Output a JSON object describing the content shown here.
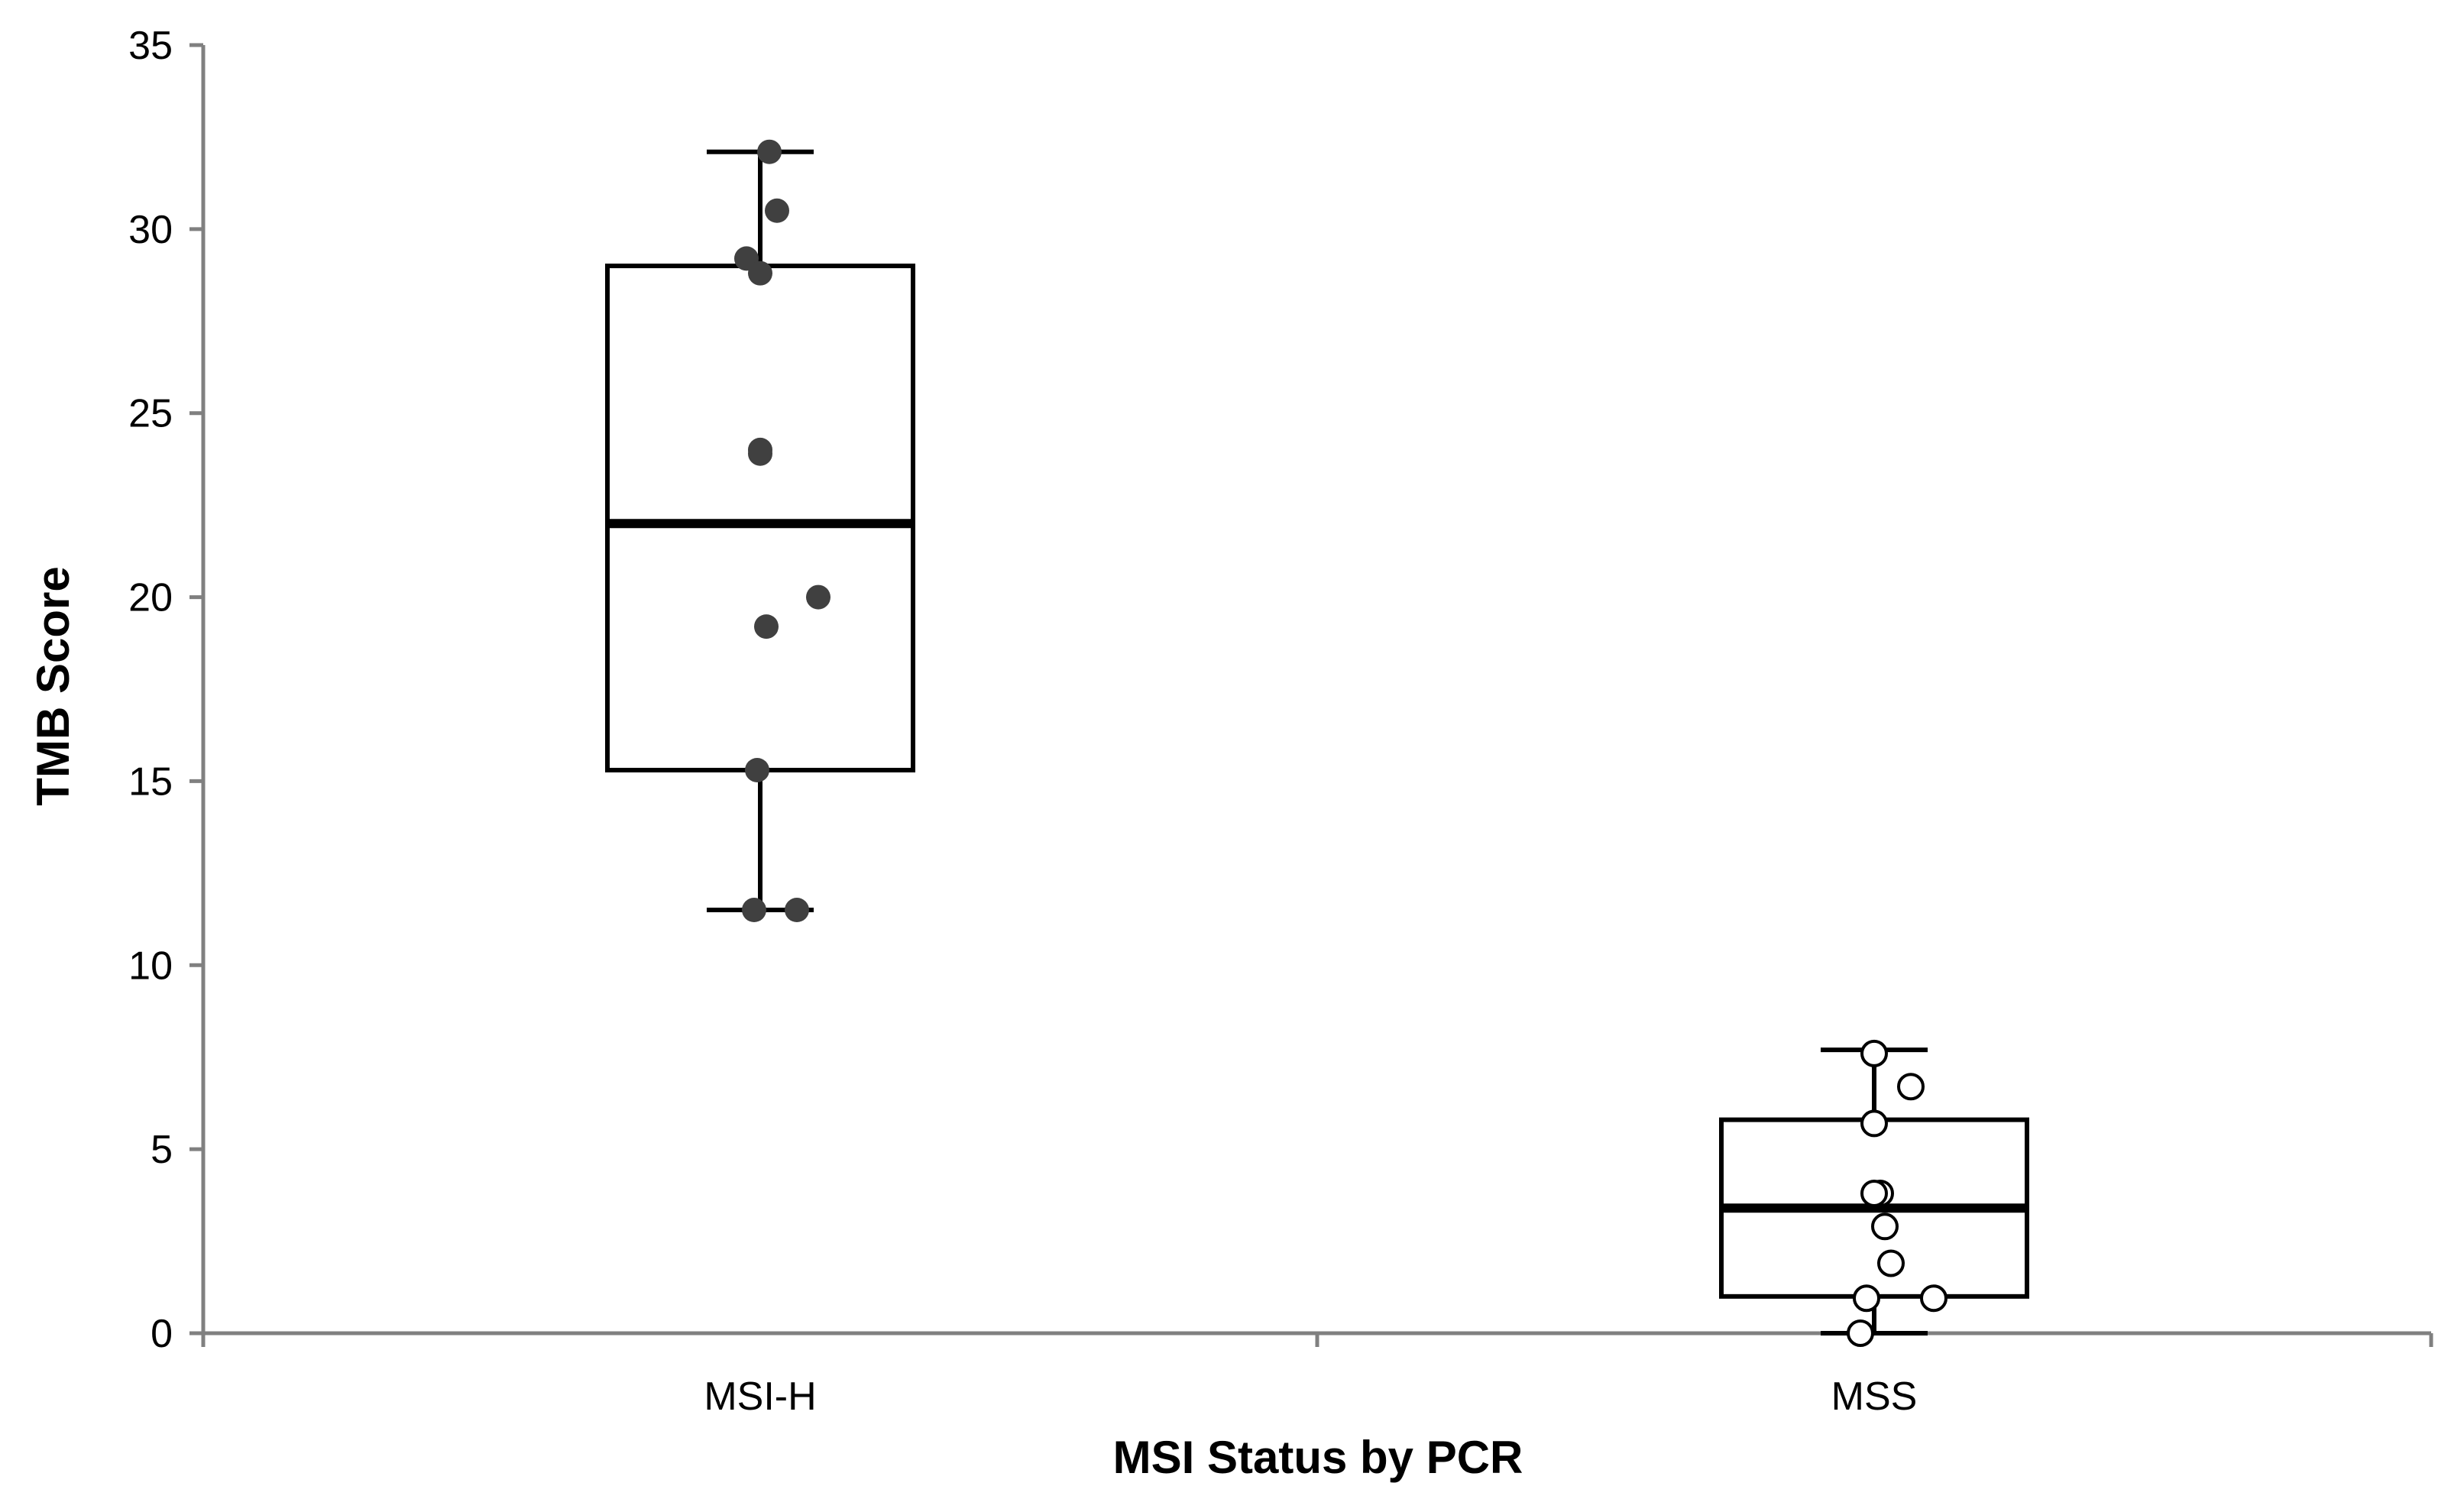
{
  "chart_data": {
    "type": "box",
    "xlabel": "MSI Status by PCR",
    "ylabel": "TMB Score",
    "ylim": [
      0,
      35
    ],
    "yticks": [
      0,
      5,
      10,
      15,
      20,
      25,
      30,
      35
    ],
    "grid": false,
    "legend": "none",
    "categories": [
      "MSI-H",
      "MSS"
    ],
    "boxes": [
      {
        "category": "MSI-H",
        "whisker_low": 11.5,
        "q1": 15.3,
        "median": 22.0,
        "q3": 29.0,
        "whisker_high": 32.1,
        "point_style": "filled",
        "points": [
          {
            "jitter": 0.06,
            "y": 32.1
          },
          {
            "jitter": 0.11,
            "y": 30.5
          },
          {
            "jitter": -0.09,
            "y": 29.2
          },
          {
            "jitter": 0.0,
            "y": 28.8
          },
          {
            "jitter": 0.0,
            "y": 24.0
          },
          {
            "jitter": 0.0,
            "y": 23.9
          },
          {
            "jitter": 0.38,
            "y": 20.0
          },
          {
            "jitter": 0.04,
            "y": 19.2
          },
          {
            "jitter": -0.02,
            "y": 15.3
          },
          {
            "jitter": -0.04,
            "y": 11.5
          },
          {
            "jitter": 0.24,
            "y": 11.5
          }
        ]
      },
      {
        "category": "MSS",
        "whisker_low": 0.0,
        "q1": 1.0,
        "median": 3.4,
        "q3": 5.8,
        "whisker_high": 7.7,
        "point_style": "open",
        "points": [
          {
            "jitter": 0.0,
            "y": 7.6
          },
          {
            "jitter": 0.24,
            "y": 6.7
          },
          {
            "jitter": 0.0,
            "y": 5.7
          },
          {
            "jitter": 0.04,
            "y": 3.8
          },
          {
            "jitter": 0.0,
            "y": 3.8
          },
          {
            "jitter": 0.07,
            "y": 2.9
          },
          {
            "jitter": 0.11,
            "y": 1.9
          },
          {
            "jitter": -0.05,
            "y": 0.95
          },
          {
            "jitter": 0.39,
            "y": 0.95
          },
          {
            "jitter": -0.09,
            "y": 0.0
          }
        ]
      }
    ],
    "colors": {
      "axis": "#808080",
      "box_stroke": "#000000",
      "filled_point": "#404040",
      "open_point_fill": "#ffffff",
      "open_point_stroke": "#000000"
    }
  }
}
